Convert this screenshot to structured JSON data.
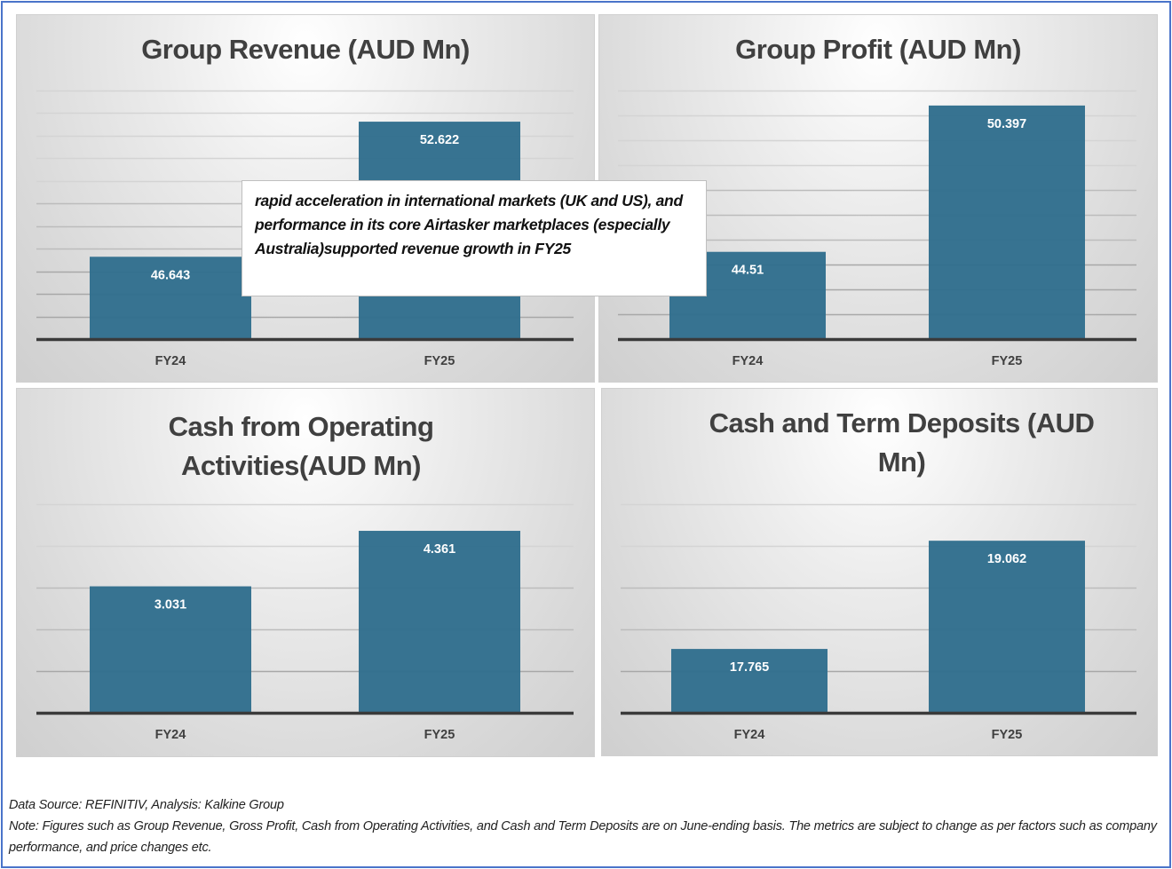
{
  "colors": {
    "bar": "#33708f",
    "bar_label": "#ffffff",
    "baseline": "#3a3a3a",
    "gridline": "#b5b5b5",
    "axis_label": "#404040",
    "frame_border": "#4a74c9"
  },
  "chart_data": [
    {
      "type": "bar",
      "title": "Group Revenue (AUD Mn)",
      "categories": [
        "FY24",
        "FY25"
      ],
      "values": [
        46.643,
        52.622
      ],
      "value_labels": [
        "46.643",
        "52.622"
      ],
      "xlabel": "",
      "ylabel": "",
      "ylim": [
        43,
        54
      ],
      "grid_step": 1,
      "grid": true,
      "legend": "none"
    },
    {
      "type": "bar",
      "title": "Group Profit (AUD Mn)",
      "categories": [
        "FY24",
        "FY25"
      ],
      "values": [
        44.51,
        50.397
      ],
      "value_labels": [
        "44.51",
        "50.397"
      ],
      "xlabel": "",
      "ylabel": "",
      "ylim": [
        41,
        51
      ],
      "grid_step": 1,
      "grid": true,
      "legend": "none"
    },
    {
      "type": "bar",
      "title": "Cash from Operating Activities(AUD Mn)",
      "title_lines": [
        "Cash from Operating",
        "Activities(AUD Mn)"
      ],
      "categories": [
        "FY24",
        "FY25"
      ],
      "values": [
        3.031,
        4.361
      ],
      "value_labels": [
        "3.031",
        "4.361"
      ],
      "xlabel": "",
      "ylabel": "",
      "ylim": [
        0,
        5
      ],
      "grid_step": 1,
      "grid": true,
      "legend": "none"
    },
    {
      "type": "bar",
      "title": "Cash and Term Deposits (AUD Mn)",
      "title_lines": [
        "Cash and Term Deposits (AUD",
        "Mn)"
      ],
      "categories": [
        "FY24",
        "FY25"
      ],
      "values": [
        17.765,
        19.062
      ],
      "value_labels": [
        "17.765",
        "19.062"
      ],
      "xlabel": "",
      "ylabel": "",
      "ylim": [
        17,
        19.5
      ],
      "grid_step": 0.5,
      "grid": true,
      "legend": "none"
    }
  ],
  "titles": {
    "revenue": "Group Revenue (AUD Mn)",
    "profit": "Group Profit (AUD Mn)",
    "cfo_line1": "Cash from Operating",
    "cfo_line2": "Activities(AUD Mn)",
    "cash_line1": "Cash and Term Deposits (AUD",
    "cash_line2": "Mn)"
  },
  "callout": {
    "text": "rapid acceleration in international markets (UK and US), and performance in its core Airtasker marketplaces (especially Australia)supported revenue growth in FY25"
  },
  "footer": {
    "source": "Data Source: REFINITIV, Analysis: Kalkine Group",
    "note": "Note: Figures such as Group Revenue, Gross Profit, Cash from Operating Activities, and Cash and Term Deposits are on  June-ending basis. The metrics are subject to change as per factors such as company performance, and price changes etc."
  }
}
